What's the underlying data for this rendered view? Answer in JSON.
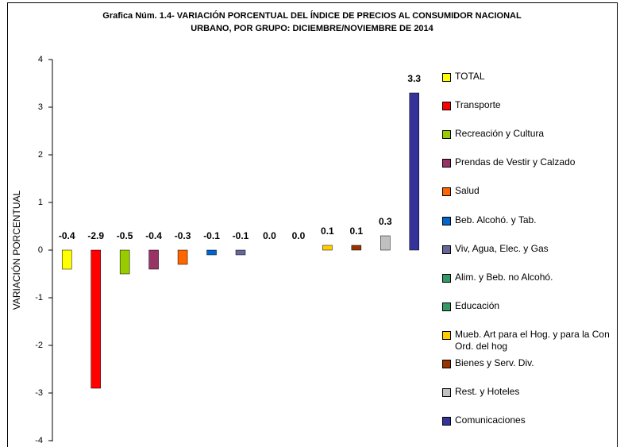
{
  "chart_data": {
    "type": "bar",
    "title": [
      "Grafica Núm. 1.4- VARIACIÓN PORCENTUAL DEL ÍNDICE DE PRECIOS AL CONSUMIDOR NACIONAL",
      "URBANO, POR GRUPO: DICIEMBRE/NOVIEMBRE DE 2014"
    ],
    "y_label": "VARIACIÓN PORCENTUAL",
    "categories": [
      "TOTAL",
      "Transporte",
      "Recreación y Cultura",
      "Prendas de Vestir y Calzado",
      "Salud",
      "Beb. Alcohó. y Tab.",
      "Viv, Agua, Elec. y Gas",
      "Alim. y Beb. no Alcohó.",
      "Educación",
      "Mueb. Art para el Hog. y para la Con Ord. del hog",
      "Bienes y Serv. Div.",
      "Rest. y Hoteles",
      "Comunicaciones"
    ],
    "values": [
      -0.4,
      -2.9,
      -0.5,
      -0.4,
      -0.3,
      -0.1,
      -0.1,
      0,
      0,
      0.1,
      0.1,
      0.3,
      3.3
    ],
    "value_labels": [
      "-0.4",
      "-2.9",
      "-0.5",
      "-0.4",
      "-0.3",
      "-0.1",
      "-0.1",
      "0.0",
      "0.0",
      "0.1",
      "0.1",
      "0.3",
      "3.3"
    ],
    "colors": [
      "#ffff00",
      "#ff0000",
      "#99cc00",
      "#993366",
      "#ff6600",
      "#0066cc",
      "#666699",
      "#339966",
      "#339966",
      "#ffcc00",
      "#993300",
      "#c0c0c0",
      "#333399"
    ],
    "ylim": [
      -4,
      4
    ],
    "yticks": [
      -4,
      -3,
      -2,
      -1,
      0,
      1,
      2,
      3,
      4
    ],
    "grid": false,
    "legend": "right"
  }
}
